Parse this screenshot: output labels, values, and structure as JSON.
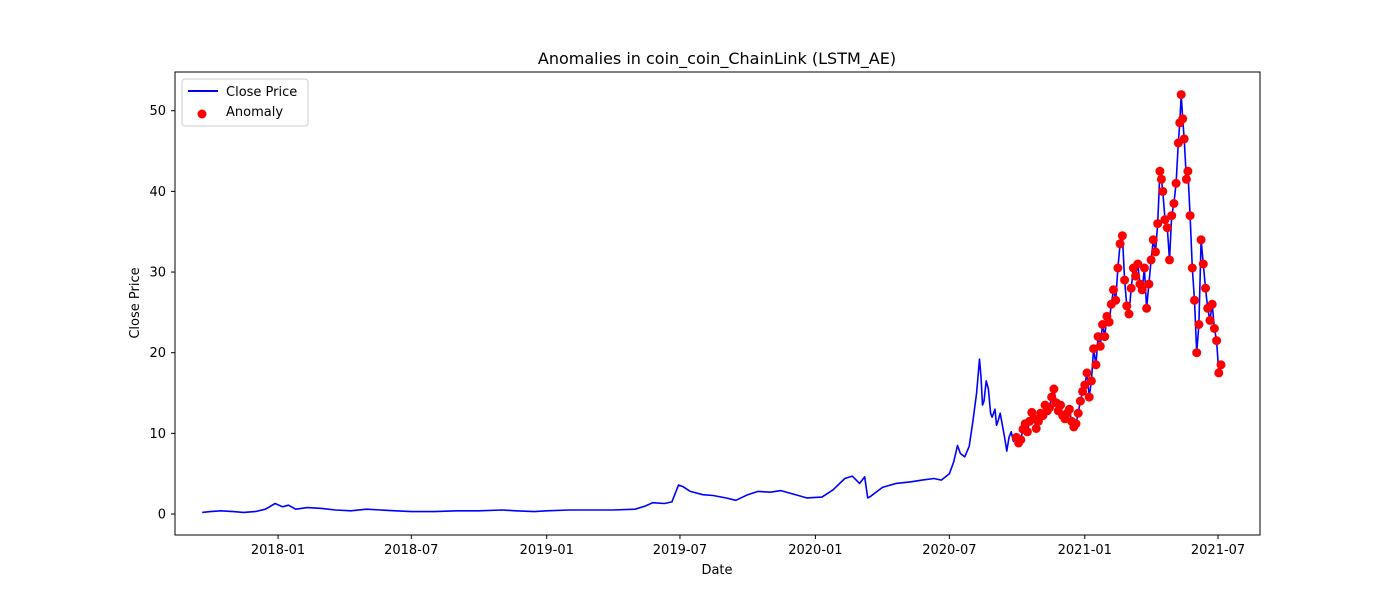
{
  "chart_data": {
    "type": "line",
    "title": "Anomalies in coin_coin_ChainLink (LSTM_AE)",
    "xlabel": "Date",
    "ylabel": "Close Price",
    "xlim": [
      "2017-08-14",
      "2021-08-27"
    ],
    "ylim": [
      -2.6,
      54.8
    ],
    "x_ticks": [
      "2018-01",
      "2018-07",
      "2019-01",
      "2019-07",
      "2020-01",
      "2020-07",
      "2021-01",
      "2021-07"
    ],
    "y_ticks": [
      0,
      10,
      20,
      30,
      40,
      50
    ],
    "grid": false,
    "legend_position": "top-left",
    "colors": {
      "line": "#0000ff",
      "anomaly": "#ff0000"
    },
    "series": [
      {
        "name": "Close Price",
        "type": "line",
        "x": [
          "2017-09-20",
          "2017-10-01",
          "2017-10-15",
          "2017-11-01",
          "2017-11-15",
          "2017-12-01",
          "2017-12-15",
          "2017-12-28",
          "2018-01-07",
          "2018-01-15",
          "2018-01-25",
          "2018-02-10",
          "2018-03-01",
          "2018-03-20",
          "2018-04-10",
          "2018-05-01",
          "2018-05-20",
          "2018-06-10",
          "2018-07-01",
          "2018-08-01",
          "2018-09-01",
          "2018-10-01",
          "2018-11-01",
          "2018-11-20",
          "2018-12-15",
          "2019-01-01",
          "2019-02-01",
          "2019-03-01",
          "2019-04-01",
          "2019-05-01",
          "2019-05-15",
          "2019-05-25",
          "2019-06-10",
          "2019-06-20",
          "2019-06-29",
          "2019-07-05",
          "2019-07-15",
          "2019-08-01",
          "2019-08-15",
          "2019-09-01",
          "2019-09-15",
          "2019-10-01",
          "2019-10-15",
          "2019-11-01",
          "2019-11-15",
          "2019-12-01",
          "2019-12-20",
          "2020-01-10",
          "2020-01-25",
          "2020-02-10",
          "2020-02-20",
          "2020-03-01",
          "2020-03-08",
          "2020-03-12",
          "2020-03-16",
          "2020-04-01",
          "2020-04-20",
          "2020-05-10",
          "2020-05-25",
          "2020-06-10",
          "2020-06-20",
          "2020-07-01",
          "2020-07-07",
          "2020-07-12",
          "2020-07-16",
          "2020-07-22",
          "2020-07-28",
          "2020-08-02",
          "2020-08-07",
          "2020-08-11",
          "2020-08-13",
          "2020-08-15",
          "2020-08-17",
          "2020-08-20",
          "2020-08-23",
          "2020-08-26",
          "2020-08-28",
          "2020-09-01",
          "2020-09-03",
          "2020-09-05",
          "2020-09-08",
          "2020-09-11",
          "2020-09-14",
          "2020-09-17",
          "2020-09-20",
          "2020-09-23",
          "2020-09-26"
        ],
        "y": [
          0.2,
          0.3,
          0.4,
          0.3,
          0.2,
          0.3,
          0.6,
          1.3,
          0.9,
          1.1,
          0.6,
          0.8,
          0.7,
          0.5,
          0.4,
          0.6,
          0.5,
          0.4,
          0.3,
          0.3,
          0.4,
          0.4,
          0.5,
          0.4,
          0.3,
          0.4,
          0.5,
          0.5,
          0.5,
          0.6,
          1.0,
          1.4,
          1.3,
          1.5,
          3.6,
          3.4,
          2.8,
          2.4,
          2.3,
          2.0,
          1.7,
          2.4,
          2.8,
          2.7,
          2.9,
          2.5,
          2.0,
          2.1,
          3.0,
          4.4,
          4.7,
          3.8,
          4.6,
          2.0,
          2.2,
          3.3,
          3.8,
          4.0,
          4.2,
          4.4,
          4.2,
          5.0,
          6.5,
          8.5,
          7.5,
          7.1,
          8.4,
          11.5,
          15.0,
          19.2,
          17.0,
          13.5,
          14.0,
          16.5,
          15.5,
          12.5,
          12.0,
          13.0,
          11.0,
          11.5,
          12.5,
          11.0,
          9.5,
          7.8,
          9.5,
          10.2,
          9.0
        ]
      },
      {
        "name": "Anomaly",
        "type": "scatter",
        "x": [
          "2020-09-30",
          "2020-10-03",
          "2020-10-06",
          "2020-10-09",
          "2020-10-12",
          "2020-10-15",
          "2020-10-18",
          "2020-10-21",
          "2020-10-24",
          "2020-10-27",
          "2020-10-30",
          "2020-11-02",
          "2020-11-05",
          "2020-11-08",
          "2020-11-11",
          "2020-11-14",
          "2020-11-17",
          "2020-11-20",
          "2020-11-23",
          "2020-11-26",
          "2020-11-29",
          "2020-12-02",
          "2020-12-05",
          "2020-12-08",
          "2020-12-11",
          "2020-12-14",
          "2020-12-17",
          "2020-12-20",
          "2020-12-23",
          "2020-12-26",
          "2020-12-29",
          "2021-01-01",
          "2021-01-04",
          "2021-01-07",
          "2021-01-10",
          "2021-01-13",
          "2021-01-16",
          "2021-01-19",
          "2021-01-22",
          "2021-01-25",
          "2021-01-28",
          "2021-01-31",
          "2021-02-03",
          "2021-02-06",
          "2021-02-09",
          "2021-02-12",
          "2021-02-15",
          "2021-02-18",
          "2021-02-21",
          "2021-02-24",
          "2021-02-27",
          "2021-03-02",
          "2021-03-05",
          "2021-03-08",
          "2021-03-11",
          "2021-03-14",
          "2021-03-17",
          "2021-03-20",
          "2021-03-23",
          "2021-03-26",
          "2021-03-29",
          "2021-04-01",
          "2021-04-04",
          "2021-04-07",
          "2021-04-10",
          "2021-04-13",
          "2021-04-15",
          "2021-04-17",
          "2021-04-20",
          "2021-04-23",
          "2021-04-26",
          "2021-04-29",
          "2021-05-02",
          "2021-05-05",
          "2021-05-08",
          "2021-05-10",
          "2021-05-12",
          "2021-05-14",
          "2021-05-16",
          "2021-05-19",
          "2021-05-21",
          "2021-05-24",
          "2021-05-27",
          "2021-05-30",
          "2021-06-02",
          "2021-06-05",
          "2021-06-08",
          "2021-06-11",
          "2021-06-14",
          "2021-06-17",
          "2021-06-20",
          "2021-06-23",
          "2021-06-26",
          "2021-06-29",
          "2021-07-02",
          "2021-07-05"
        ],
        "y": [
          9.5,
          8.8,
          9.2,
          10.5,
          11.2,
          10.2,
          11.5,
          12.6,
          11.8,
          10.6,
          11.5,
          12.5,
          12.2,
          13.5,
          12.8,
          13.2,
          14.5,
          15.5,
          13.8,
          12.8,
          13.5,
          12.2,
          11.8,
          12.5,
          13.0,
          11.5,
          10.8,
          11.2,
          12.5,
          14.0,
          15.2,
          16.0,
          17.5,
          14.5,
          16.5,
          20.5,
          18.5,
          22.0,
          20.8,
          23.5,
          22.0,
          24.5,
          23.8,
          26.0,
          27.8,
          26.5,
          30.5,
          33.5,
          34.5,
          29.0,
          25.8,
          24.8,
          28.0,
          30.5,
          29.5,
          31.0,
          28.5,
          27.8,
          30.5,
          25.5,
          28.5,
          31.5,
          34.0,
          32.5,
          36.0,
          42.5,
          41.5,
          40.0,
          36.5,
          35.5,
          31.5,
          37.0,
          38.5,
          41.0,
          46.0,
          48.5,
          52.0,
          49.0,
          46.5,
          41.5,
          42.5,
          37.0,
          30.5,
          26.5,
          20.0,
          23.5,
          34.0,
          31.0,
          28.0,
          25.5,
          24.0,
          26.0,
          23.0,
          21.5,
          17.5,
          18.5
        ]
      }
    ]
  }
}
